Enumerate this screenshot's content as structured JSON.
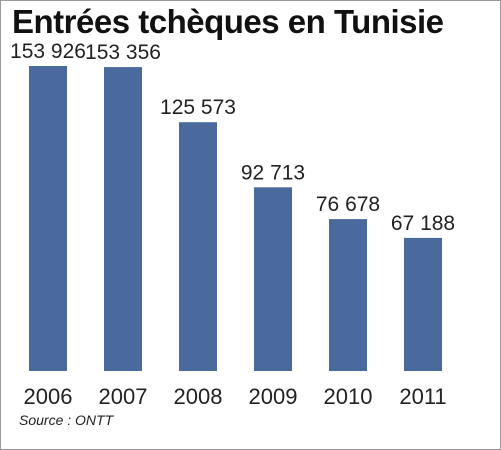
{
  "chart_data": {
    "type": "bar",
    "title": "Entrées tchèques en Tunisie",
    "categories": [
      "2006",
      "2007",
      "2008",
      "2009",
      "2010",
      "2011"
    ],
    "values": [
      153926,
      153356,
      125573,
      92713,
      76678,
      67188
    ],
    "value_labels": [
      "153 926",
      "153 356",
      "125 573",
      "92 713",
      "76 678",
      "67 188"
    ],
    "xlabel": "",
    "ylabel": "",
    "ylim": [
      0,
      163000
    ],
    "grid": false,
    "legend": "none",
    "bar_color": "#4a6a9e",
    "source": "Source : ONTT"
  }
}
